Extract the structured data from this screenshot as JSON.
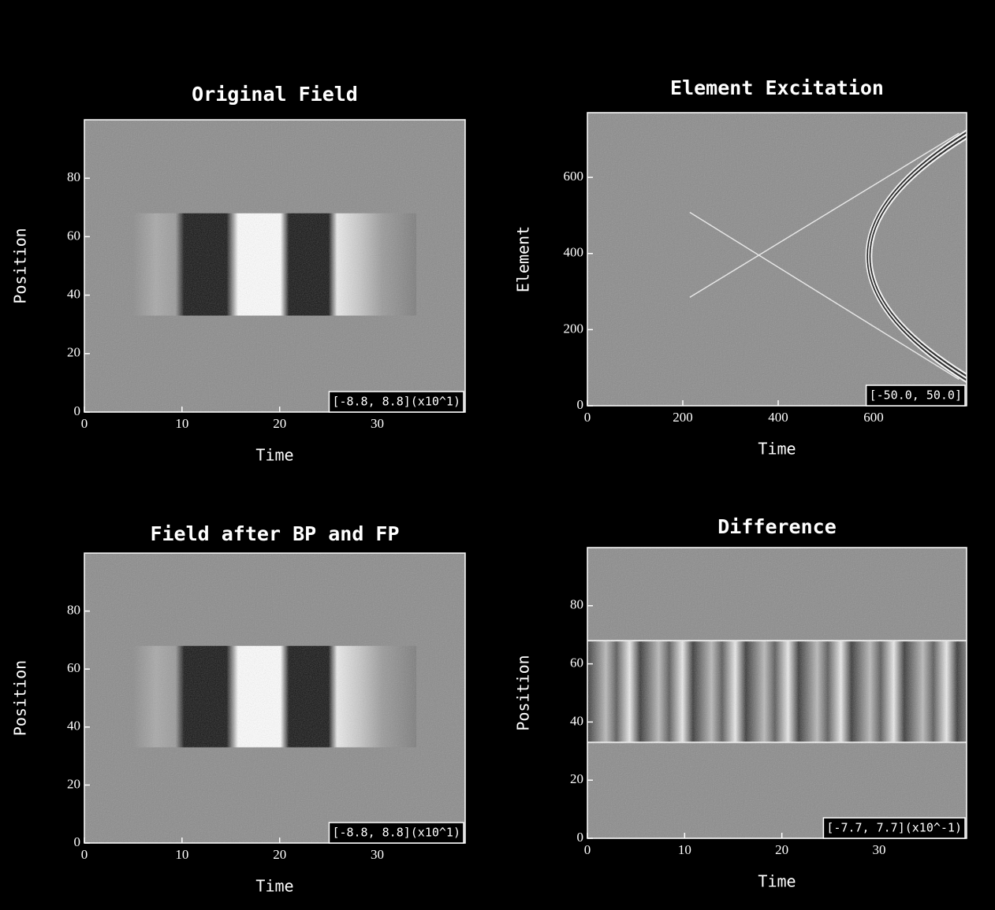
{
  "chart_data": [
    {
      "type": "heatmap",
      "title": "Original Field",
      "x_label": "Time",
      "y_label": "Position",
      "range_label": "[-8.8, 8.8](x10^1)",
      "xlim": [
        0,
        39
      ],
      "ylim": [
        0,
        100
      ],
      "xticks": [
        0,
        10,
        20,
        30
      ],
      "yticks": [
        0,
        20,
        40,
        60,
        80
      ]
    },
    {
      "type": "heatmap",
      "title": "Element Excitation",
      "x_label": "Time",
      "y_label": "Element",
      "range_label": "[-50.0, 50.0]",
      "xlim": [
        0,
        795
      ],
      "ylim": [
        0,
        770
      ],
      "xticks": [
        0,
        200,
        400,
        600
      ],
      "yticks": [
        0,
        200,
        400,
        600
      ]
    },
    {
      "type": "heatmap",
      "title": "Field after BP and FP",
      "x_label": "Time",
      "y_label": "Position",
      "range_label": "[-8.8, 8.8](x10^1)",
      "xlim": [
        0,
        39
      ],
      "ylim": [
        0,
        100
      ],
      "xticks": [
        0,
        10,
        20,
        30
      ],
      "yticks": [
        0,
        20,
        40,
        60,
        80
      ]
    },
    {
      "type": "heatmap",
      "title": "Difference",
      "x_label": "Time",
      "y_label": "Position",
      "range_label": "[-7.7, 7.7](x10^-1)",
      "xlim": [
        0,
        39
      ],
      "ylim": [
        0,
        100
      ],
      "xticks": [
        0,
        10,
        20,
        30
      ],
      "yticks": [
        0,
        20,
        40,
        60,
        80
      ]
    }
  ]
}
